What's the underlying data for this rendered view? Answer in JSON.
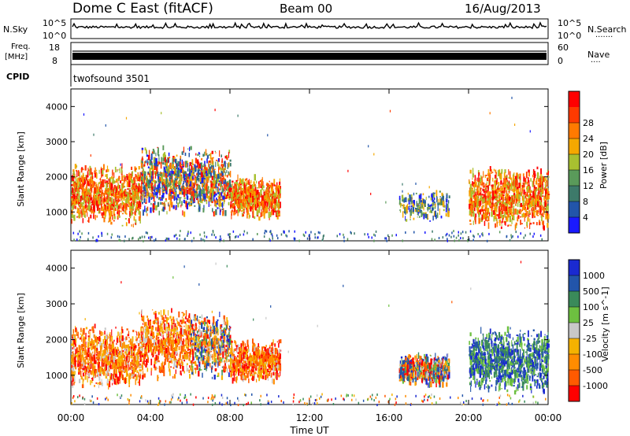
{
  "header": {
    "station": "Dome C East (fitACF)",
    "beam": "Beam 00",
    "date": "16/Aug/2013"
  },
  "nsky_panel": {
    "label": "N.Sky",
    "left_ticks": [
      "10^5",
      "10^0"
    ],
    "right_ticks": [
      "10^5",
      "10^0"
    ],
    "right_label": "N.Search",
    "right_legend_dots": "·······"
  },
  "freq_panel": {
    "label_line1": "Freq.",
    "label_line2": "[MHz]",
    "left_ticks": [
      "18",
      "8"
    ],
    "right_ticks": [
      "60",
      "0"
    ],
    "right_label": "Nave",
    "right_legend_dots": "····"
  },
  "cpid": {
    "label": "CPID",
    "value": "twofsound 3501"
  },
  "colors": {
    "power_scale": [
      "#1a1aff",
      "#2255aa",
      "#3d7a6a",
      "#5a9a5a",
      "#a8c030",
      "#f5a800",
      "#ff7a00",
      "#ff3a00",
      "#ff0000"
    ],
    "velocity_scale": [
      "#ff0000",
      "#ff5a00",
      "#ff8c00",
      "#f5b200",
      "#c8c8c8",
      "#6dc040",
      "#3a8a5a",
      "#2255aa",
      "#1a2ad0"
    ]
  },
  "chart_data": [
    {
      "type": "heatmap",
      "name": "power-panel",
      "ylabel": "Slant Range [km]",
      "ylim": [
        180,
        4500
      ],
      "yticks": [
        "1000",
        "2000",
        "3000",
        "4000"
      ],
      "xticks": [
        "00:00",
        "04:00",
        "08:00",
        "12:00",
        "16:00",
        "20:00",
        "00:00"
      ],
      "xlim_hours": [
        0,
        24
      ],
      "colorbar_label": "Power [dB]",
      "colorbar_ticks": [
        "4",
        "8",
        "12",
        "16",
        "20",
        "24",
        "28"
      ],
      "echo_regions_approx": [
        {
          "t_start": 0.0,
          "t_end": 3.5,
          "range_low": 600,
          "range_high": 2400,
          "dominant": "high power"
        },
        {
          "t_start": 3.5,
          "t_end": 6.0,
          "range_low": 900,
          "range_high": 2900,
          "dominant": "mixed"
        },
        {
          "t_start": 6.0,
          "t_end": 8.0,
          "range_low": 900,
          "range_high": 2800,
          "dominant": "mixed"
        },
        {
          "t_start": 8.0,
          "t_end": 10.5,
          "range_low": 800,
          "range_high": 2000,
          "dominant": "high power"
        },
        {
          "t_start": 16.5,
          "t_end": 19.0,
          "range_low": 700,
          "range_high": 1600,
          "dominant": "sparse"
        },
        {
          "t_start": 20.0,
          "t_end": 24.0,
          "range_low": 500,
          "range_high": 2300,
          "dominant": "high power"
        }
      ]
    },
    {
      "type": "heatmap",
      "name": "velocity-panel",
      "ylabel": "Slant Range [km]",
      "ylim": [
        180,
        4500
      ],
      "yticks": [
        "1000",
        "2000",
        "3000",
        "4000"
      ],
      "xticks": [
        "00:00",
        "04:00",
        "08:00",
        "12:00",
        "16:00",
        "20:00",
        "00:00"
      ],
      "xlabel": "Time UT",
      "xlim_hours": [
        0,
        24
      ],
      "colorbar_label": "Velocity [m s^-1]",
      "colorbar_ticks": [
        "1000",
        "500",
        "100",
        "25",
        "-25",
        "-100",
        "-500",
        "-1000"
      ],
      "echo_regions_approx": [
        {
          "t_start": 0.0,
          "t_end": 3.5,
          "range_low": 600,
          "range_high": 2400,
          "dominant": "negative"
        },
        {
          "t_start": 3.5,
          "t_end": 6.0,
          "range_low": 900,
          "range_high": 2900,
          "dominant": "negative"
        },
        {
          "t_start": 6.0,
          "t_end": 8.0,
          "range_low": 900,
          "range_high": 2800,
          "dominant": "mixed"
        },
        {
          "t_start": 8.0,
          "t_end": 10.5,
          "range_low": 800,
          "range_high": 2000,
          "dominant": "negative"
        },
        {
          "t_start": 16.5,
          "t_end": 19.0,
          "range_low": 700,
          "range_high": 1600,
          "dominant": "mixed"
        },
        {
          "t_start": 20.0,
          "t_end": 24.0,
          "range_low": 500,
          "range_high": 2300,
          "dominant": "positive"
        }
      ]
    }
  ]
}
